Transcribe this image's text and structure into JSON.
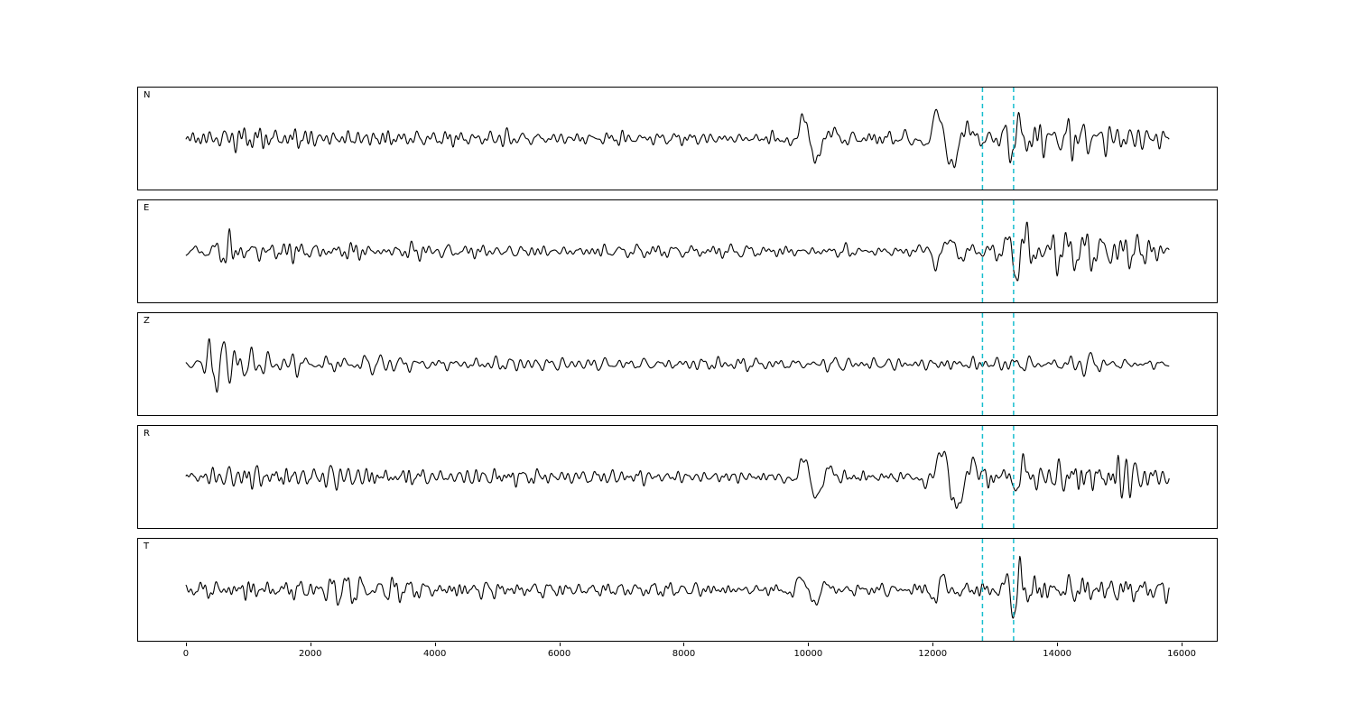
{
  "figure": {
    "background": "#ffffff",
    "description": "Five stacked seismogram trace panels (N, E, Z, R, T components) sharing an x axis, with two cyan dashed phase-pick lines"
  },
  "chart_data": {
    "type": "line",
    "title": "",
    "xlabel": "",
    "ylabel": "",
    "grid": false,
    "legend": "none",
    "xlim": [
      -767,
      16565
    ],
    "x_ticks": [
      0,
      2000,
      4000,
      6000,
      8000,
      10000,
      12000,
      14000,
      16000
    ],
    "x_range": [
      0,
      15800
    ],
    "sample_step": 10,
    "noise_period": [
      70,
      330
    ],
    "trace_color": "#000000",
    "pick_lines": {
      "color": "#17becf",
      "style": "dashed",
      "x_values": [
        12800,
        13300
      ]
    },
    "panels": [
      {
        "label": "N",
        "seed": 11,
        "envelope": [
          [
            0,
            5
          ],
          [
            300,
            8
          ],
          [
            700,
            13
          ],
          [
            1100,
            10
          ],
          [
            1800,
            11
          ],
          [
            2600,
            9
          ],
          [
            3500,
            8
          ],
          [
            5000,
            7
          ],
          [
            7000,
            6
          ],
          [
            9000,
            5
          ],
          [
            9600,
            5
          ],
          [
            10400,
            6
          ],
          [
            11500,
            6
          ],
          [
            12600,
            7
          ],
          [
            13100,
            9
          ],
          [
            13500,
            16
          ],
          [
            14200,
            15
          ],
          [
            15000,
            14
          ],
          [
            15800,
            11
          ]
        ],
        "pulses": [
          {
            "x": 10060,
            "amp": 26,
            "period": 480,
            "phase": 3.6
          },
          {
            "x": 12230,
            "amp": 34,
            "period": 520,
            "phase": 3.6
          },
          {
            "x": 13320,
            "amp": 20,
            "period": 260,
            "phase": 0
          }
        ]
      },
      {
        "label": "E",
        "seed": 22,
        "envelope": [
          [
            0,
            6
          ],
          [
            400,
            9
          ],
          [
            700,
            14
          ],
          [
            1200,
            11
          ],
          [
            2000,
            10
          ],
          [
            3000,
            9
          ],
          [
            4500,
            8
          ],
          [
            6500,
            7
          ],
          [
            8500,
            6
          ],
          [
            10000,
            6
          ],
          [
            11500,
            6
          ],
          [
            12300,
            8
          ],
          [
            12900,
            9
          ],
          [
            13250,
            12
          ],
          [
            13450,
            22
          ],
          [
            14200,
            18
          ],
          [
            15000,
            17
          ],
          [
            15500,
            14
          ],
          [
            15800,
            10
          ]
        ],
        "pulses": [
          {
            "x": 12150,
            "amp": 18,
            "period": 420,
            "phase": 0
          },
          {
            "x": 13330,
            "amp": 30,
            "period": 280,
            "phase": 4.7
          }
        ]
      },
      {
        "label": "Z",
        "seed": 33,
        "envelope": [
          [
            0,
            4
          ],
          [
            330,
            6
          ],
          [
            430,
            22
          ],
          [
            600,
            20
          ],
          [
            900,
            14
          ],
          [
            1400,
            10
          ],
          [
            2200,
            9
          ],
          [
            3500,
            8
          ],
          [
            5000,
            7
          ],
          [
            7000,
            6
          ],
          [
            9000,
            6
          ],
          [
            11000,
            6
          ],
          [
            12500,
            6
          ],
          [
            13300,
            7
          ],
          [
            14000,
            8
          ],
          [
            14400,
            10
          ],
          [
            14800,
            8
          ],
          [
            15400,
            8
          ],
          [
            15800,
            7
          ]
        ],
        "pulses": [
          {
            "x": 470,
            "amp": -30,
            "period": 220,
            "phase": 1.57
          },
          {
            "x": 560,
            "amp": 22,
            "period": 200,
            "phase": 0
          },
          {
            "x": 14480,
            "amp": 13,
            "period": 240,
            "phase": 0
          }
        ]
      },
      {
        "label": "R",
        "seed": 44,
        "envelope": [
          [
            0,
            5
          ],
          [
            400,
            8
          ],
          [
            900,
            10
          ],
          [
            1700,
            10
          ],
          [
            2600,
            9
          ],
          [
            3800,
            8
          ],
          [
            5200,
            8
          ],
          [
            7000,
            6
          ],
          [
            9000,
            5
          ],
          [
            10500,
            6
          ],
          [
            11800,
            6
          ],
          [
            12800,
            8
          ],
          [
            13300,
            10
          ],
          [
            13700,
            18
          ],
          [
            14400,
            16
          ],
          [
            15100,
            15
          ],
          [
            15800,
            10
          ]
        ],
        "pulses": [
          {
            "x": 10060,
            "amp": 24,
            "period": 470,
            "phase": 3.6
          },
          {
            "x": 12320,
            "amp": 36,
            "period": 560,
            "phase": 3.8
          },
          {
            "x": 13400,
            "amp": 22,
            "period": 300,
            "phase": 0
          }
        ]
      },
      {
        "label": "T",
        "seed": 55,
        "envelope": [
          [
            0,
            5
          ],
          [
            400,
            11
          ],
          [
            800,
            15
          ],
          [
            1400,
            12
          ],
          [
            2200,
            12
          ],
          [
            3200,
            10
          ],
          [
            4500,
            9
          ],
          [
            6000,
            8
          ],
          [
            7500,
            7
          ],
          [
            9000,
            6
          ],
          [
            10500,
            6
          ],
          [
            11800,
            7
          ],
          [
            12600,
            8
          ],
          [
            13100,
            9
          ],
          [
            13400,
            20
          ],
          [
            14000,
            14
          ],
          [
            14700,
            16
          ],
          [
            15400,
            13
          ],
          [
            15800,
            10
          ]
        ],
        "pulses": [
          {
            "x": 10020,
            "amp": 18,
            "period": 430,
            "phase": 3.5
          },
          {
            "x": 12120,
            "amp": 14,
            "period": 380,
            "phase": 0.5
          },
          {
            "x": 13310,
            "amp": 28,
            "period": 240,
            "phase": 4.7
          }
        ]
      }
    ]
  }
}
